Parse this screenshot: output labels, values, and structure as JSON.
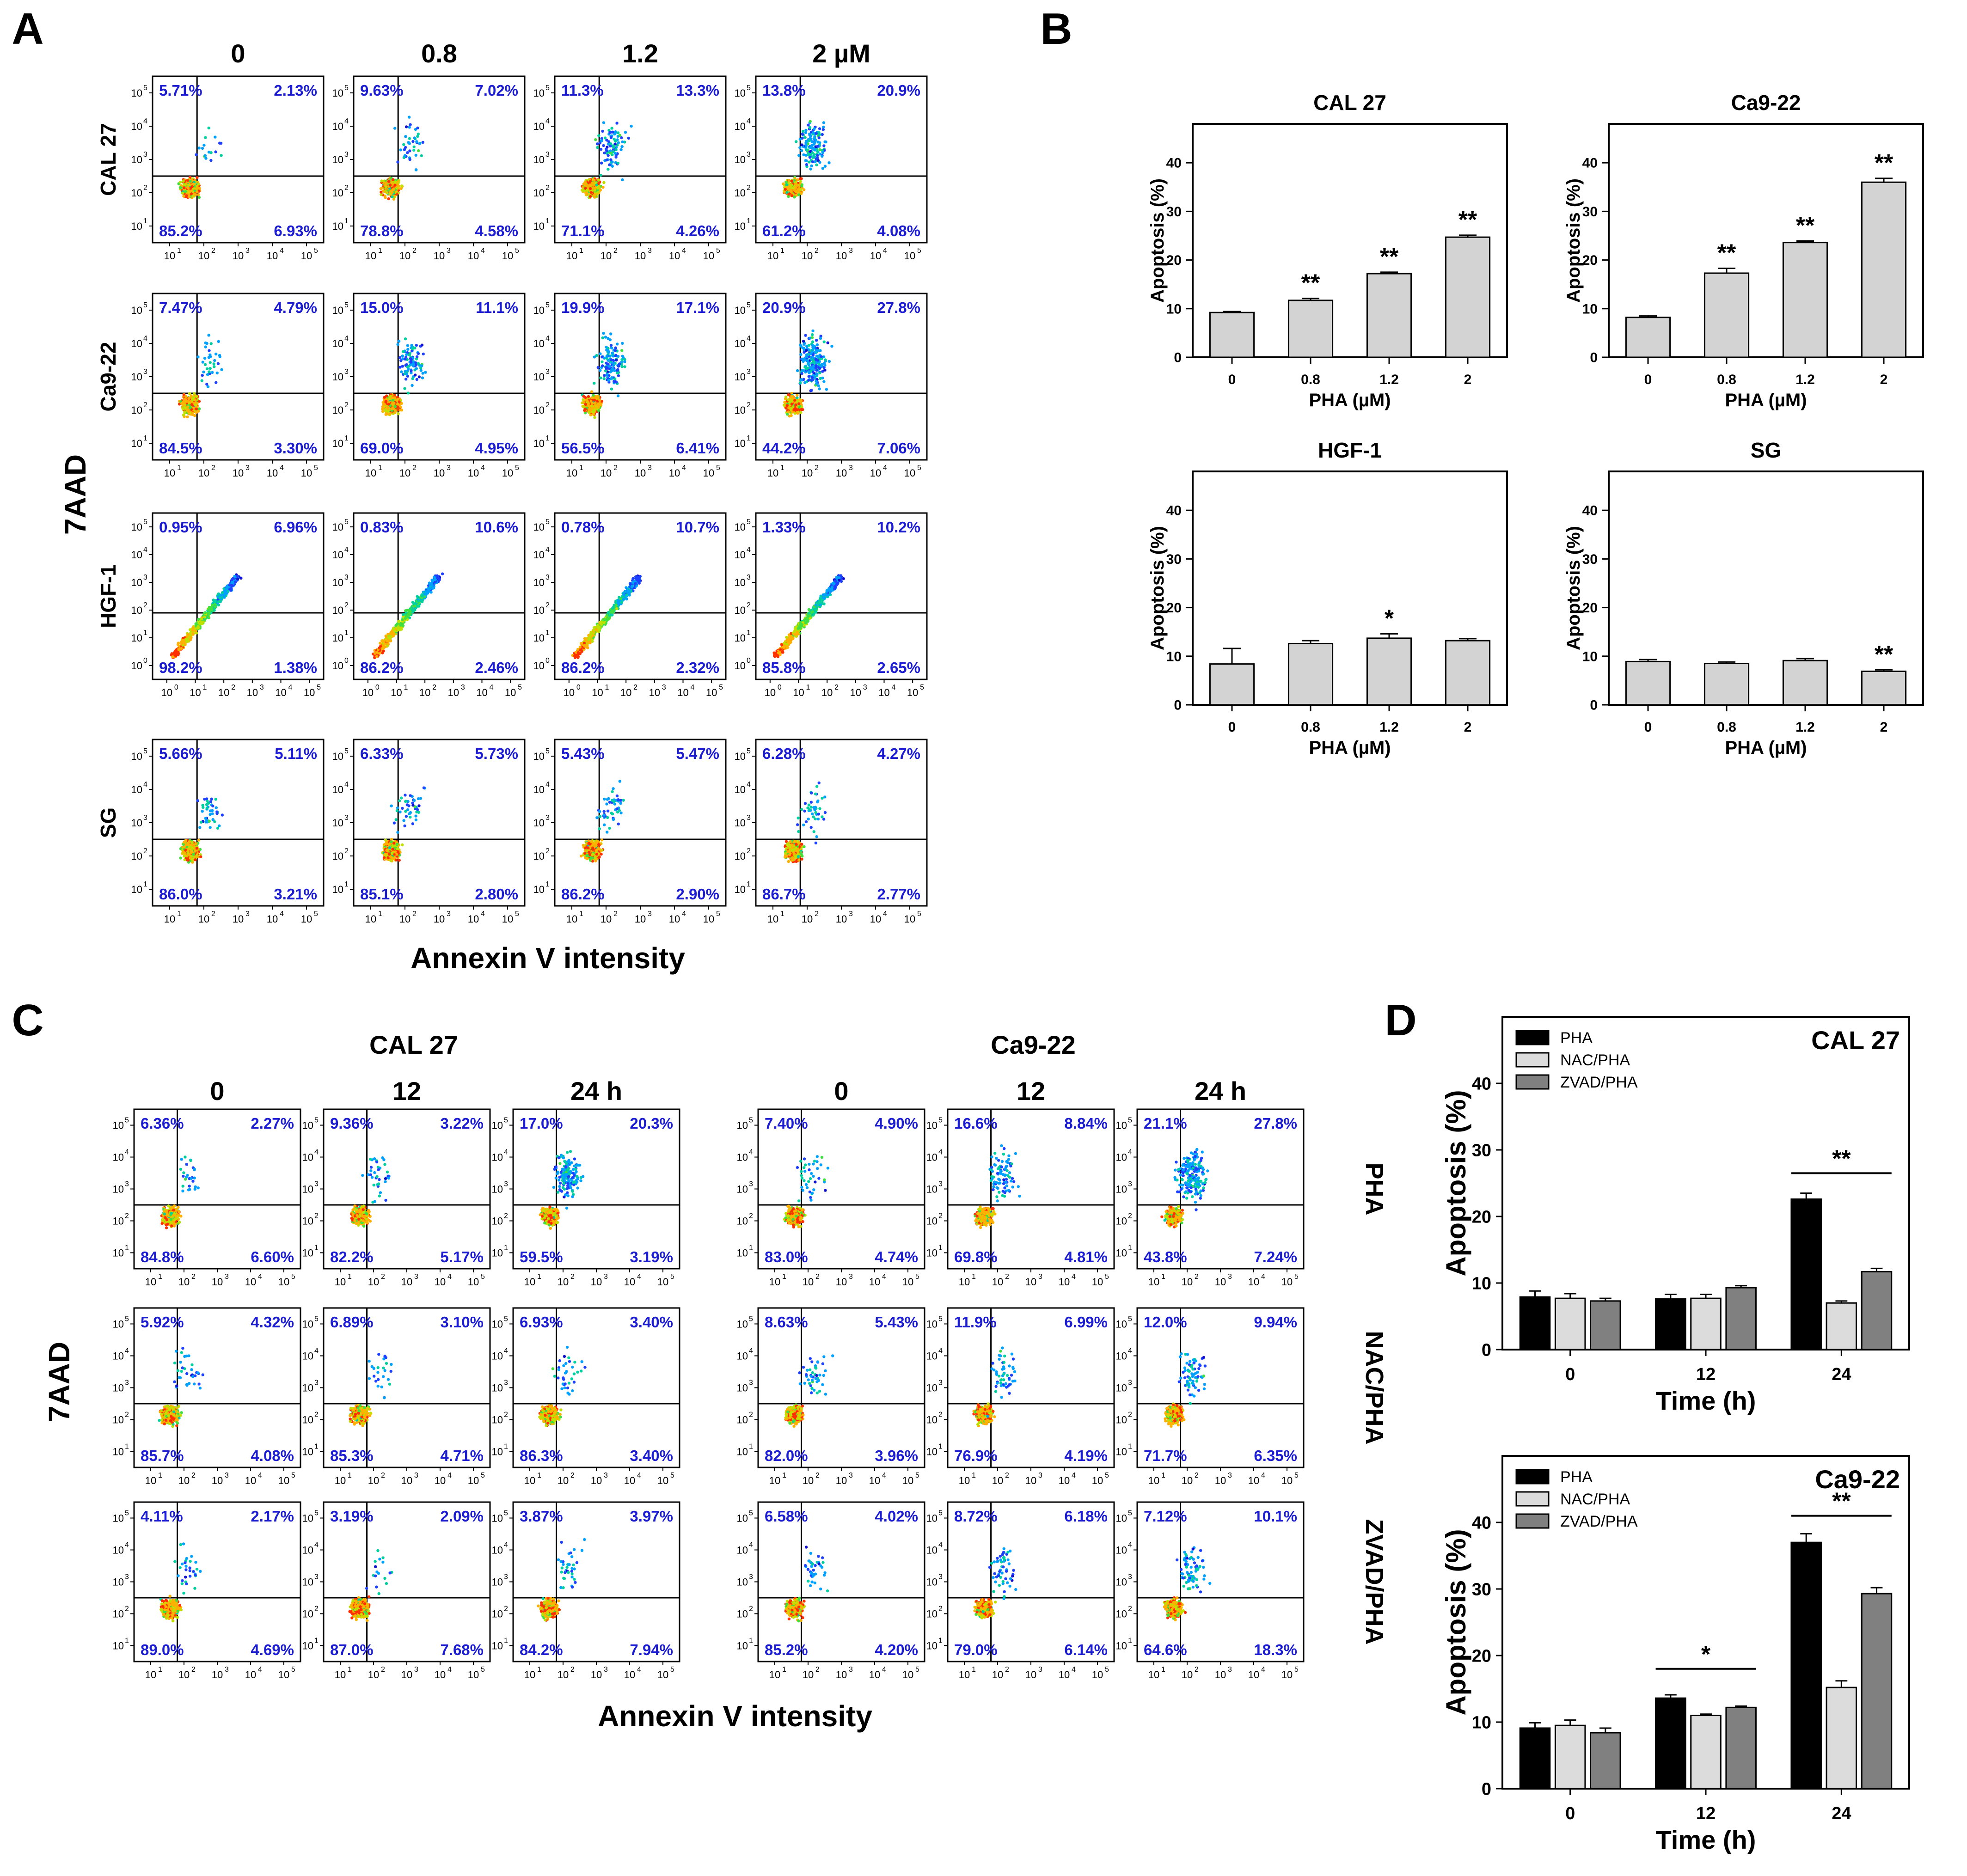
{
  "colors": {
    "quadrant_text": "#1c1cd0",
    "bar_gray": "#d3d3d3",
    "bar_black": "#000000",
    "bar_light": "#dcdcdc",
    "bar_dark": "#808080",
    "axis": "#000000"
  },
  "panel_labels": [
    "A",
    "B",
    "C",
    "D"
  ],
  "chart_data": [
    {
      "panel": "A",
      "type": "scatter",
      "subtype": "flow-cytometry-quadrant-grid",
      "columns": [
        "0",
        "0.8",
        "1.2",
        "2 µM"
      ],
      "rows": [
        "CAL 27",
        "Ca9-22",
        "HGF-1",
        "SG"
      ],
      "ylabel": "7AAD",
      "xlabel": "Annexin V intensity",
      "tick_bases": [
        "10",
        "10",
        "10",
        "10",
        "10"
      ],
      "tick_exponents": [
        "1",
        "2",
        "3",
        "4",
        "5"
      ],
      "hgf_tick_exponents": [
        "0",
        "1",
        "2",
        "3",
        "4",
        "5"
      ],
      "quadrants": [
        [
          [
            "5.71%",
            "2.13%",
            "85.2%",
            "6.93%"
          ],
          [
            "9.63%",
            "7.02%",
            "78.8%",
            "4.58%"
          ],
          [
            "11.3%",
            "13.3%",
            "71.1%",
            "4.26%"
          ],
          [
            "13.8%",
            "20.9%",
            "61.2%",
            "4.08%"
          ]
        ],
        [
          [
            "7.47%",
            "4.79%",
            "84.5%",
            "3.30%"
          ],
          [
            "15.0%",
            "11.1%",
            "69.0%",
            "4.95%"
          ],
          [
            "19.9%",
            "17.1%",
            "56.5%",
            "6.41%"
          ],
          [
            "20.9%",
            "27.8%",
            "44.2%",
            "7.06%"
          ]
        ],
        [
          [
            "0.95%",
            "6.96%",
            "98.2%",
            "1.38%"
          ],
          [
            "0.83%",
            "10.6%",
            "86.2%",
            "2.46%"
          ],
          [
            "0.78%",
            "10.7%",
            "86.2%",
            "2.32%"
          ],
          [
            "1.33%",
            "10.2%",
            "85.8%",
            "2.65%"
          ]
        ],
        [
          [
            "5.66%",
            "5.11%",
            "86.0%",
            "3.21%"
          ],
          [
            "6.33%",
            "5.73%",
            "85.1%",
            "2.80%"
          ],
          [
            "5.43%",
            "5.47%",
            "86.2%",
            "2.90%"
          ],
          [
            "6.28%",
            "4.27%",
            "86.7%",
            "2.77%"
          ]
        ]
      ]
    },
    {
      "panel": "B",
      "type": "bar",
      "xlabel": "PHA (µM)",
      "ylabel": "Apoptosis (%)",
      "ylim": [
        0,
        48
      ],
      "yticks": [
        "0",
        "10",
        "20",
        "30",
        "40"
      ],
      "categories": [
        "0",
        "0.8",
        "1.2",
        "2"
      ],
      "plots": [
        {
          "title": "CAL 27",
          "values": [
            9.2,
            11.7,
            17.2,
            24.7
          ],
          "errors": [
            0.2,
            0.4,
            0.3,
            0.4
          ],
          "sig": [
            "",
            "**",
            "**",
            "**"
          ]
        },
        {
          "title": "Ca9-22",
          "values": [
            8.2,
            17.3,
            23.6,
            36.0
          ],
          "errors": [
            0.3,
            1.0,
            0.3,
            0.8
          ],
          "sig": [
            "",
            "**",
            "**",
            "**"
          ]
        },
        {
          "title": "HGF-1",
          "values": [
            8.4,
            12.6,
            13.7,
            13.2
          ],
          "errors": [
            3.2,
            0.6,
            0.9,
            0.4
          ],
          "sig": [
            "",
            "",
            "*",
            ""
          ]
        },
        {
          "title": "SG",
          "values": [
            8.9,
            8.5,
            9.1,
            6.9
          ],
          "errors": [
            0.4,
            0.3,
            0.4,
            0.3
          ],
          "sig": [
            "",
            "",
            "",
            "**"
          ]
        }
      ]
    },
    {
      "panel": "C",
      "type": "scatter",
      "subtype": "flow-cytometry-quadrant-grid",
      "group_titles": [
        "CAL 27",
        "Ca9-22"
      ],
      "columns": [
        "0",
        "12",
        "24 h",
        "0",
        "12",
        "24 h"
      ],
      "rows": [
        "PHA",
        "NAC/PHA",
        "ZVAD/PHA"
      ],
      "ylabel": "7AAD",
      "xlabel": "Annexin V intensity",
      "quadrants": [
        [
          [
            "6.36%",
            "2.27%",
            "84.8%",
            "6.60%"
          ],
          [
            "9.36%",
            "3.22%",
            "82.2%",
            "5.17%"
          ],
          [
            "17.0%",
            "20.3%",
            "59.5%",
            "3.19%"
          ],
          [
            "7.40%",
            "4.90%",
            "83.0%",
            "4.74%"
          ],
          [
            "16.6%",
            "8.84%",
            "69.8%",
            "4.81%"
          ],
          [
            "21.1%",
            "27.8%",
            "43.8%",
            "7.24%"
          ]
        ],
        [
          [
            "5.92%",
            "4.32%",
            "85.7%",
            "4.08%"
          ],
          [
            "6.89%",
            "3.10%",
            "85.3%",
            "4.71%"
          ],
          [
            "6.93%",
            "3.40%",
            "86.3%",
            "3.40%"
          ],
          [
            "8.63%",
            "5.43%",
            "82.0%",
            "3.96%"
          ],
          [
            "11.9%",
            "6.99%",
            "76.9%",
            "4.19%"
          ],
          [
            "12.0%",
            "9.94%",
            "71.7%",
            "6.35%"
          ]
        ],
        [
          [
            "4.11%",
            "2.17%",
            "89.0%",
            "4.69%"
          ],
          [
            "3.19%",
            "2.09%",
            "87.0%",
            "7.68%"
          ],
          [
            "3.87%",
            "3.97%",
            "84.2%",
            "7.94%"
          ],
          [
            "6.58%",
            "4.02%",
            "85.2%",
            "4.20%"
          ],
          [
            "8.72%",
            "6.18%",
            "79.0%",
            "6.14%"
          ],
          [
            "7.12%",
            "10.1%",
            "64.6%",
            "18.3%"
          ]
        ]
      ]
    },
    {
      "panel": "D",
      "type": "bar",
      "xlabel": "Time (h)",
      "ylabel": "Apoptosis (%)",
      "ylim": [
        0,
        50
      ],
      "yticks": [
        "0",
        "10",
        "20",
        "30",
        "40"
      ],
      "categories": [
        "0",
        "12",
        "24"
      ],
      "legend": [
        "PHA",
        "NAC/PHA",
        "ZVAD/PHA"
      ],
      "plots": [
        {
          "title": "CAL 27",
          "series": [
            {
              "name": "PHA",
              "values": [
                7.9,
                7.6,
                22.6
              ],
              "errors": [
                0.9,
                0.7,
                0.9
              ]
            },
            {
              "name": "NAC/PHA",
              "values": [
                7.7,
                7.7,
                7.0
              ],
              "errors": [
                0.7,
                0.6,
                0.3
              ]
            },
            {
              "name": "ZVAD/PHA",
              "values": [
                7.3,
                9.3,
                11.7
              ],
              "errors": [
                0.4,
                0.3,
                0.5
              ]
            }
          ],
          "brackets": [
            {
              "category": "24",
              "label": "**",
              "y": 26.5
            }
          ]
        },
        {
          "title": "Ca9-22",
          "series": [
            {
              "name": "PHA",
              "values": [
                9.1,
                13.6,
                37.0
              ],
              "errors": [
                0.8,
                0.5,
                1.3
              ]
            },
            {
              "name": "NAC/PHA",
              "values": [
                9.5,
                11.0,
                15.2
              ],
              "errors": [
                0.8,
                0.2,
                1.0
              ]
            },
            {
              "name": "ZVAD/PHA",
              "values": [
                8.4,
                12.2,
                29.3
              ],
              "errors": [
                0.7,
                0.2,
                0.9
              ]
            }
          ],
          "brackets": [
            {
              "category": "12",
              "label": "*",
              "y": 18.0
            },
            {
              "category": "24",
              "label": "**",
              "y": 41.0
            }
          ]
        }
      ]
    }
  ]
}
